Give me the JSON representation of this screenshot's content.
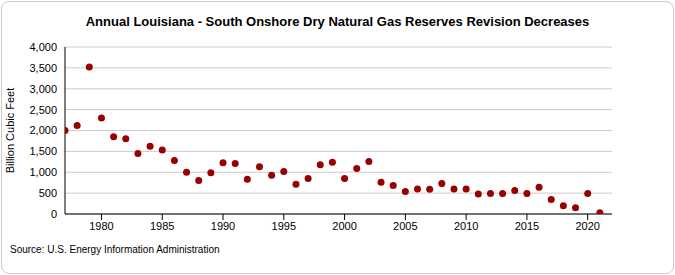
{
  "chart_data": {
    "type": "scatter",
    "title": "Annual Louisiana - South Onshore Dry Natural Gas Reserves Revision Decreases",
    "y_label": "Billion Cubic Feet",
    "source": "Source: U.S. Energy Information Administration",
    "x": [
      1977,
      1978,
      1979,
      1980,
      1981,
      1982,
      1983,
      1984,
      1985,
      1986,
      1987,
      1988,
      1989,
      1990,
      1991,
      1992,
      1993,
      1994,
      1995,
      1996,
      1997,
      1998,
      1999,
      2000,
      2001,
      2002,
      2003,
      2004,
      2005,
      2006,
      2007,
      2008,
      2009,
      2010,
      2011,
      2012,
      2013,
      2014,
      2015,
      2016,
      2017,
      2018,
      2019,
      2020,
      2021
    ],
    "values": [
      2000,
      2120,
      3520,
      2300,
      1850,
      1800,
      1450,
      1620,
      1530,
      1280,
      1000,
      800,
      990,
      1230,
      1210,
      830,
      1130,
      930,
      1020,
      710,
      850,
      1180,
      1240,
      850,
      1090,
      1260,
      760,
      680,
      540,
      600,
      590,
      730,
      600,
      600,
      480,
      490,
      490,
      560,
      490,
      640,
      350,
      200,
      150,
      490,
      30
    ],
    "color": "#990000",
    "marker": "circle",
    "xlim": [
      1977,
      2022
    ],
    "xticks": [
      1980,
      1985,
      1990,
      1995,
      2000,
      2005,
      2010,
      2015,
      2020
    ],
    "ylim": [
      0,
      4000
    ],
    "yticks": [
      0,
      500,
      {
        "value": 1000,
        "label": "1,000"
      },
      {
        "value": 1500,
        "label": "1,500"
      },
      {
        "value": 2000,
        "label": "2,000"
      },
      {
        "value": 2500,
        "label": "2,500"
      },
      {
        "value": 3000,
        "label": "3,000"
      },
      {
        "value": 3500,
        "label": "3,500"
      },
      {
        "value": 4000,
        "label": "4,000"
      }
    ],
    "grid": true
  }
}
